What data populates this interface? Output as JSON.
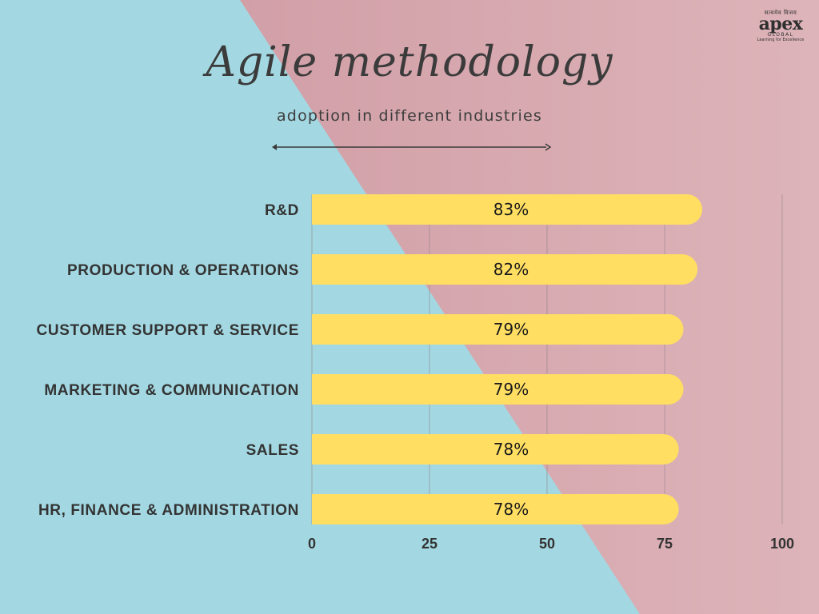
{
  "logo": {
    "top": "सत्यमेव विजय",
    "main": "apex",
    "sub": "GLOBAL",
    "tagline": "Learning for Excellence"
  },
  "header": {
    "title": "Agile methodology",
    "subtitle": "adoption in different industries"
  },
  "colors": {
    "bar": "#FFDE62",
    "bg_left": "#A3D8E2",
    "bg_right": "#D5A7AE",
    "grid": "#8f8388"
  },
  "chart_data": {
    "type": "bar",
    "orientation": "horizontal",
    "categories": [
      "R&D",
      "PRODUCTION & OPERATIONS",
      "CUSTOMER SUPPORT & SERVICE",
      "MARKETING & COMMUNICATION",
      "SALES",
      "HR, FINANCE & ADMINISTRATION"
    ],
    "values": [
      83,
      82,
      79,
      79,
      78,
      78
    ],
    "value_labels": [
      "83%",
      "82%",
      "79%",
      "79%",
      "78%",
      "78%"
    ],
    "xlim": [
      0,
      100
    ],
    "xticks": [
      0,
      25,
      50,
      75,
      100
    ],
    "xtick_labels": [
      "0",
      "25",
      "50",
      "75",
      "100"
    ],
    "grid": true,
    "legend": "none"
  }
}
